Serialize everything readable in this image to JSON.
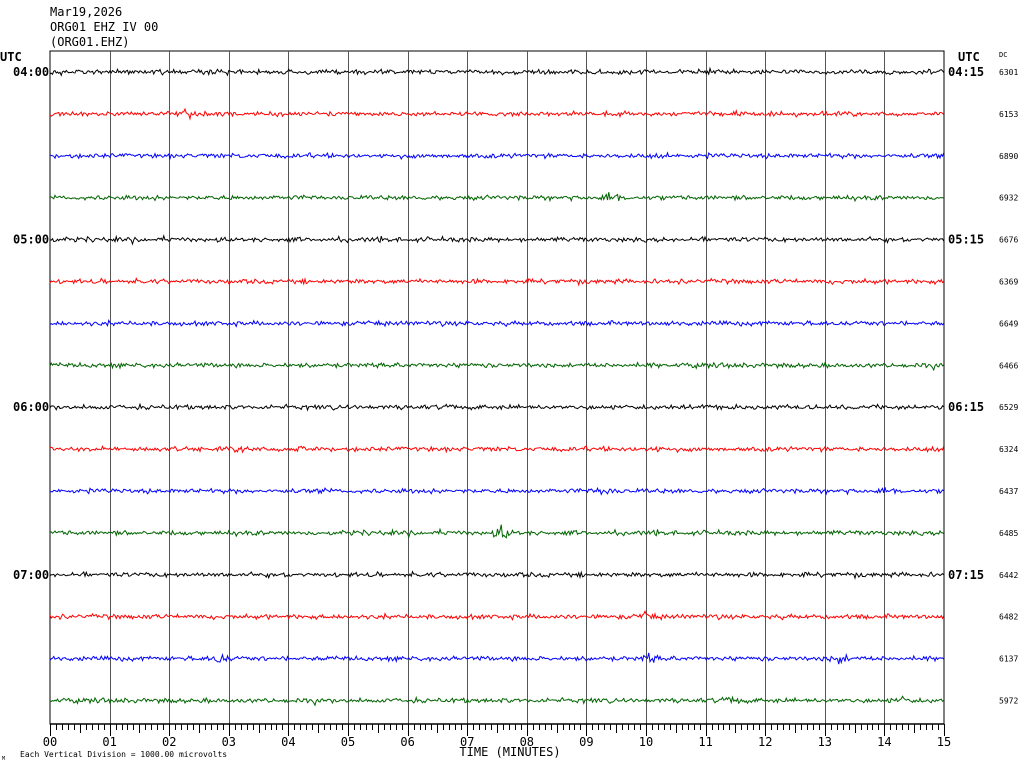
{
  "header": {
    "date": "Mar19,2026",
    "channel": "ORG01 EHZ IV 00",
    "station_code": "(ORG01.EHZ)"
  },
  "labels": {
    "utc_left": "UTC",
    "utc_right": "UTC",
    "dc": "DC",
    "footnote": "Each Vertical Division = 1000.00 microvolts",
    "corner_mark": "M"
  },
  "colors": {
    "trace_cycle": [
      "#000000",
      "#ff0000",
      "#0000ff",
      "#006400"
    ],
    "grid": "#000000",
    "background": "#ffffff"
  },
  "chart_data": {
    "type": "line",
    "title": "",
    "xlabel": "TIME (MINUTES)",
    "ylabel": "",
    "xlim": [
      0,
      15
    ],
    "x_ticks": [
      "00",
      "01",
      "02",
      "03",
      "04",
      "05",
      "06",
      "07",
      "08",
      "09",
      "10",
      "11",
      "12",
      "13",
      "14",
      "15"
    ],
    "grid": true,
    "traces_per_hour": 4,
    "hour_labels_left": [
      "04:00",
      "05:00",
      "06:00",
      "07:00"
    ],
    "hour_labels_right": [
      "04:15",
      "05:15",
      "06:15",
      "07:15"
    ],
    "dc_offsets": [
      6301,
      6153,
      6890,
      6932,
      6676,
      6369,
      6649,
      6466,
      6529,
      6324,
      6437,
      6485,
      6442,
      6482,
      6137,
      5972
    ],
    "events": [
      {
        "trace": 3,
        "minute": 9.4,
        "amplitude": 3.5
      },
      {
        "trace": 9,
        "minute": 3.3,
        "amplitude": 1.8
      },
      {
        "trace": 9,
        "minute": 4.2,
        "amplitude": 2.0
      },
      {
        "trace": 9,
        "minute": 10.1,
        "amplitude": 1.6
      },
      {
        "trace": 10,
        "minute": 9.3,
        "amplitude": 2.6
      },
      {
        "trace": 10,
        "minute": 14.0,
        "amplitude": 1.6
      },
      {
        "trace": 11,
        "minute": 7.6,
        "amplitude": 3.8
      },
      {
        "trace": 13,
        "minute": 10.0,
        "amplitude": 1.4
      },
      {
        "trace": 14,
        "minute": 2.85,
        "amplitude": 2.4
      },
      {
        "trace": 14,
        "minute": 10.05,
        "amplitude": 1.8
      },
      {
        "trace": 14,
        "minute": 13.25,
        "amplitude": 3.2
      },
      {
        "trace": 15,
        "minute": 11.5,
        "amplitude": 1.5
      },
      {
        "trace": 15,
        "minute": 14.3,
        "amplitude": 1.2
      }
    ]
  }
}
